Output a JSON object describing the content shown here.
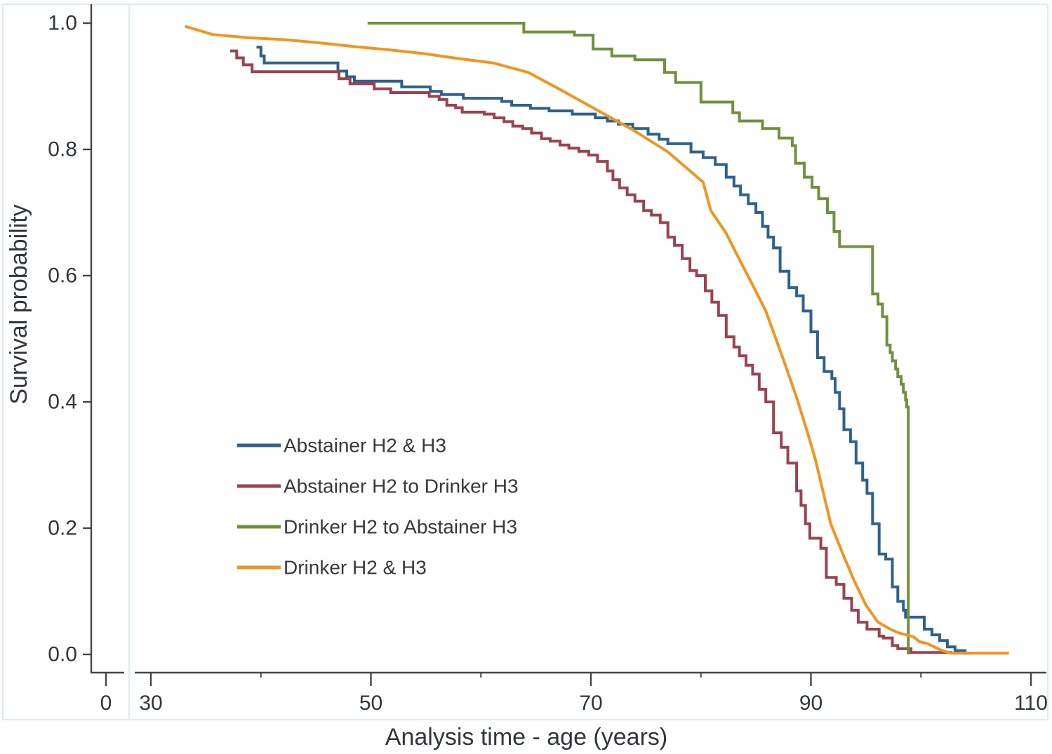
{
  "chart_data": {
    "type": "line",
    "subtype": "kaplan-meier-survival",
    "title": "",
    "xlabel": "Analysis time - age (years)",
    "ylabel": "Survival probability",
    "x_axis": {
      "display_range": [
        30,
        110
      ],
      "broken_axis_zero": true,
      "zero_label": "0",
      "major_ticks": [
        30,
        50,
        70,
        90,
        110
      ],
      "minor_ticks": [
        40,
        60,
        80,
        100
      ]
    },
    "y_axis": {
      "range": [
        0,
        1
      ],
      "major_ticks": [
        0,
        0.2,
        0.4,
        0.6,
        0.8,
        1
      ],
      "tick_labels": [
        "0.0",
        "0.2",
        "0.4",
        "0.6",
        "0.8",
        "1.0"
      ]
    },
    "grid": "off",
    "legend_position": "inside lower-left",
    "series": [
      {
        "name": "Abstainer H2 & H3",
        "color": "#2e618d",
        "style": "step",
        "points": [
          [
            39.6,
            0.962
          ],
          [
            40.0,
            0.948
          ],
          [
            40.3,
            0.937
          ],
          [
            47.0,
            0.924
          ],
          [
            47.8,
            0.915
          ],
          [
            48.5,
            0.908
          ],
          [
            52.8,
            0.899
          ],
          [
            55.4,
            0.892
          ],
          [
            56.4,
            0.887
          ],
          [
            58.4,
            0.881
          ],
          [
            61.9,
            0.876
          ],
          [
            62.8,
            0.87
          ],
          [
            64.5,
            0.865
          ],
          [
            66.2,
            0.861
          ],
          [
            68.3,
            0.856
          ],
          [
            70.4,
            0.85
          ],
          [
            71.5,
            0.845
          ],
          [
            72.5,
            0.84
          ],
          [
            73.8,
            0.833
          ],
          [
            75.2,
            0.824
          ],
          [
            76.2,
            0.816
          ],
          [
            77.0,
            0.809
          ],
          [
            79.1,
            0.796
          ],
          [
            80.2,
            0.787
          ],
          [
            81.3,
            0.776
          ],
          [
            82.3,
            0.756
          ],
          [
            83.0,
            0.742
          ],
          [
            83.6,
            0.728
          ],
          [
            84.3,
            0.714
          ],
          [
            85.0,
            0.7
          ],
          [
            85.6,
            0.678
          ],
          [
            86.1,
            0.661
          ],
          [
            86.6,
            0.644
          ],
          [
            87.2,
            0.607
          ],
          [
            88.0,
            0.581
          ],
          [
            88.7,
            0.568
          ],
          [
            89.3,
            0.544
          ],
          [
            90.0,
            0.511
          ],
          [
            90.6,
            0.47
          ],
          [
            91.2,
            0.448
          ],
          [
            91.9,
            0.437
          ],
          [
            92.2,
            0.415
          ],
          [
            92.6,
            0.389
          ],
          [
            93.0,
            0.356
          ],
          [
            93.6,
            0.337
          ],
          [
            94.1,
            0.303
          ],
          [
            94.7,
            0.276
          ],
          [
            95.1,
            0.255
          ],
          [
            95.6,
            0.207
          ],
          [
            96.2,
            0.159
          ],
          [
            96.8,
            0.151
          ],
          [
            97.4,
            0.107
          ],
          [
            97.9,
            0.084
          ],
          [
            98.4,
            0.07
          ],
          [
            98.6,
            0.059
          ],
          [
            100.3,
            0.04
          ],
          [
            101.0,
            0.031
          ],
          [
            101.7,
            0.022
          ],
          [
            102.4,
            0.012
          ],
          [
            103.1,
            0.006
          ],
          [
            104.0,
            0.002
          ],
          [
            104.6,
            0.001
          ]
        ]
      },
      {
        "name": "Abstainer H2 to Drinker H3",
        "color": "#9a4350",
        "style": "step",
        "points": [
          [
            37.2,
            0.956
          ],
          [
            37.8,
            0.945
          ],
          [
            38.4,
            0.934
          ],
          [
            39.2,
            0.923
          ],
          [
            47.1,
            0.912
          ],
          [
            48.1,
            0.904
          ],
          [
            50.3,
            0.896
          ],
          [
            51.8,
            0.89
          ],
          [
            55.3,
            0.884
          ],
          [
            56.2,
            0.879
          ],
          [
            56.9,
            0.87
          ],
          [
            57.7,
            0.866
          ],
          [
            58.3,
            0.859
          ],
          [
            60.3,
            0.856
          ],
          [
            61.2,
            0.85
          ],
          [
            62.1,
            0.844
          ],
          [
            62.9,
            0.837
          ],
          [
            63.8,
            0.833
          ],
          [
            64.6,
            0.826
          ],
          [
            65.5,
            0.817
          ],
          [
            66.3,
            0.813
          ],
          [
            67.2,
            0.807
          ],
          [
            68.0,
            0.802
          ],
          [
            68.9,
            0.797
          ],
          [
            69.8,
            0.791
          ],
          [
            70.6,
            0.781
          ],
          [
            71.5,
            0.766
          ],
          [
            72.0,
            0.752
          ],
          [
            72.6,
            0.739
          ],
          [
            73.3,
            0.728
          ],
          [
            74.0,
            0.718
          ],
          [
            74.8,
            0.703
          ],
          [
            75.5,
            0.696
          ],
          [
            76.3,
            0.684
          ],
          [
            77.0,
            0.661
          ],
          [
            77.6,
            0.648
          ],
          [
            78.3,
            0.627
          ],
          [
            79.0,
            0.608
          ],
          [
            79.6,
            0.6
          ],
          [
            80.4,
            0.576
          ],
          [
            81.0,
            0.558
          ],
          [
            81.6,
            0.537
          ],
          [
            82.3,
            0.503
          ],
          [
            83.0,
            0.487
          ],
          [
            83.5,
            0.473
          ],
          [
            84.1,
            0.458
          ],
          [
            84.7,
            0.444
          ],
          [
            85.3,
            0.42
          ],
          [
            85.9,
            0.4
          ],
          [
            86.6,
            0.351
          ],
          [
            87.3,
            0.328
          ],
          [
            87.9,
            0.303
          ],
          [
            88.7,
            0.259
          ],
          [
            89.1,
            0.236
          ],
          [
            89.5,
            0.207
          ],
          [
            89.9,
            0.184
          ],
          [
            90.9,
            0.168
          ],
          [
            91.4,
            0.122
          ],
          [
            92.3,
            0.111
          ],
          [
            93.0,
            0.089
          ],
          [
            93.7,
            0.07
          ],
          [
            94.3,
            0.051
          ],
          [
            95.1,
            0.04
          ],
          [
            96.2,
            0.029
          ],
          [
            96.6,
            0.026
          ],
          [
            97.4,
            0.014
          ],
          [
            97.9,
            0.009
          ],
          [
            99.1,
            0.003
          ],
          [
            102.7,
            0.001
          ]
        ]
      },
      {
        "name": "Drinker H2 to Abstainer H3",
        "color": "#70903e",
        "style": "step",
        "points": [
          [
            49.7,
            1.0
          ],
          [
            63.9,
            0.986
          ],
          [
            68.5,
            0.981
          ],
          [
            70.2,
            0.959
          ],
          [
            71.9,
            0.948
          ],
          [
            74.0,
            0.942
          ],
          [
            76.7,
            0.922
          ],
          [
            77.7,
            0.906
          ],
          [
            80.0,
            0.875
          ],
          [
            82.9,
            0.858
          ],
          [
            83.5,
            0.845
          ],
          [
            85.6,
            0.833
          ],
          [
            87.1,
            0.818
          ],
          [
            88.3,
            0.806
          ],
          [
            88.6,
            0.778
          ],
          [
            89.4,
            0.756
          ],
          [
            90.1,
            0.74
          ],
          [
            90.7,
            0.722
          ],
          [
            91.5,
            0.7
          ],
          [
            92.1,
            0.67
          ],
          [
            92.6,
            0.646
          ],
          [
            95.6,
            0.571
          ],
          [
            96.1,
            0.555
          ],
          [
            96.5,
            0.535
          ],
          [
            96.9,
            0.49
          ],
          [
            97.2,
            0.478
          ],
          [
            97.4,
            0.465
          ],
          [
            97.7,
            0.452
          ],
          [
            97.9,
            0.44
          ],
          [
            98.2,
            0.428
          ],
          [
            98.4,
            0.415
          ],
          [
            98.6,
            0.403
          ],
          [
            98.7,
            0.392
          ],
          [
            98.85,
            0.0
          ]
        ]
      },
      {
        "name": "Drinker H2 & H3",
        "color": "#ef9522",
        "style": "linear",
        "points": [
          [
            33.1,
            0.995
          ],
          [
            35.6,
            0.982
          ],
          [
            38.8,
            0.977
          ],
          [
            42.0,
            0.974
          ],
          [
            45.2,
            0.969
          ],
          [
            48.4,
            0.963
          ],
          [
            51.5,
            0.958
          ],
          [
            54.7,
            0.952
          ],
          [
            57.9,
            0.944
          ],
          [
            61.1,
            0.937
          ],
          [
            64.3,
            0.922
          ],
          [
            67.5,
            0.892
          ],
          [
            70.6,
            0.862
          ],
          [
            73.8,
            0.831
          ],
          [
            77.0,
            0.796
          ],
          [
            80.2,
            0.748
          ],
          [
            80.9,
            0.703
          ],
          [
            82.3,
            0.667
          ],
          [
            83.4,
            0.629
          ],
          [
            84.5,
            0.592
          ],
          [
            85.9,
            0.544
          ],
          [
            87.6,
            0.462
          ],
          [
            88.7,
            0.407
          ],
          [
            89.7,
            0.351
          ],
          [
            90.4,
            0.309
          ],
          [
            91.8,
            0.207
          ],
          [
            92.9,
            0.159
          ],
          [
            94.0,
            0.114
          ],
          [
            95.0,
            0.078
          ],
          [
            96.1,
            0.051
          ],
          [
            97.2,
            0.04
          ],
          [
            98.0,
            0.034
          ],
          [
            99.3,
            0.028
          ],
          [
            99.9,
            0.02
          ],
          [
            100.6,
            0.017
          ],
          [
            101.2,
            0.012
          ],
          [
            101.8,
            0.007
          ],
          [
            102.7,
            0.002
          ],
          [
            108.0,
            0.002
          ]
        ]
      }
    ]
  }
}
